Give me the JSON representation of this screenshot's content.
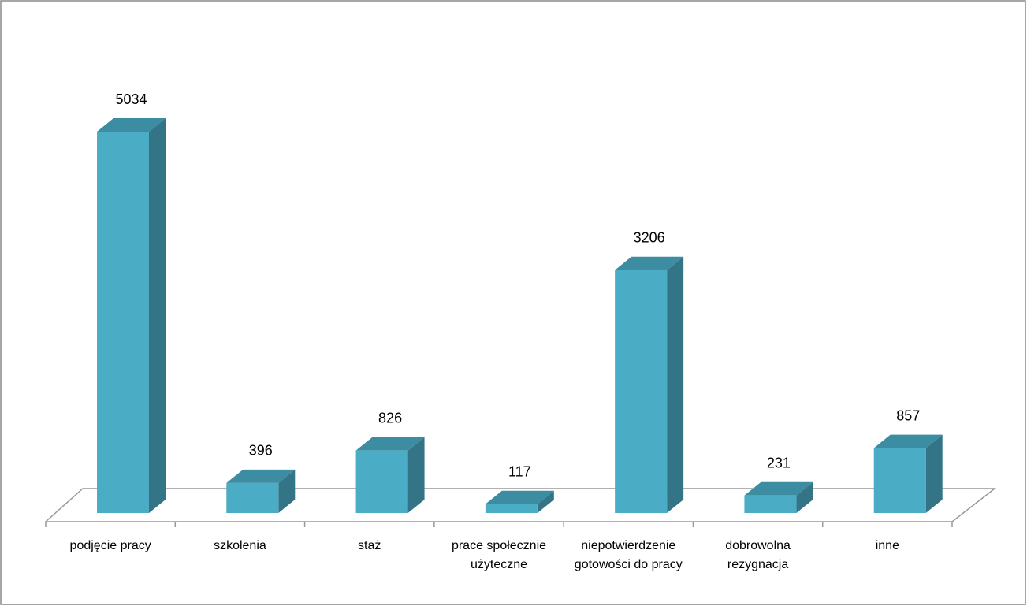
{
  "chart_data": {
    "type": "bar3d",
    "categories": [
      "podjęcie pracy",
      "szkolenia",
      "staż",
      "prace społecznie użyteczne",
      "niepotwierdzenie gotowości do pracy",
      "dobrowolna rezygnacja",
      "inne"
    ],
    "values": [
      5034,
      396,
      826,
      117,
      3206,
      231,
      857
    ],
    "color": "#4bacc6"
  }
}
